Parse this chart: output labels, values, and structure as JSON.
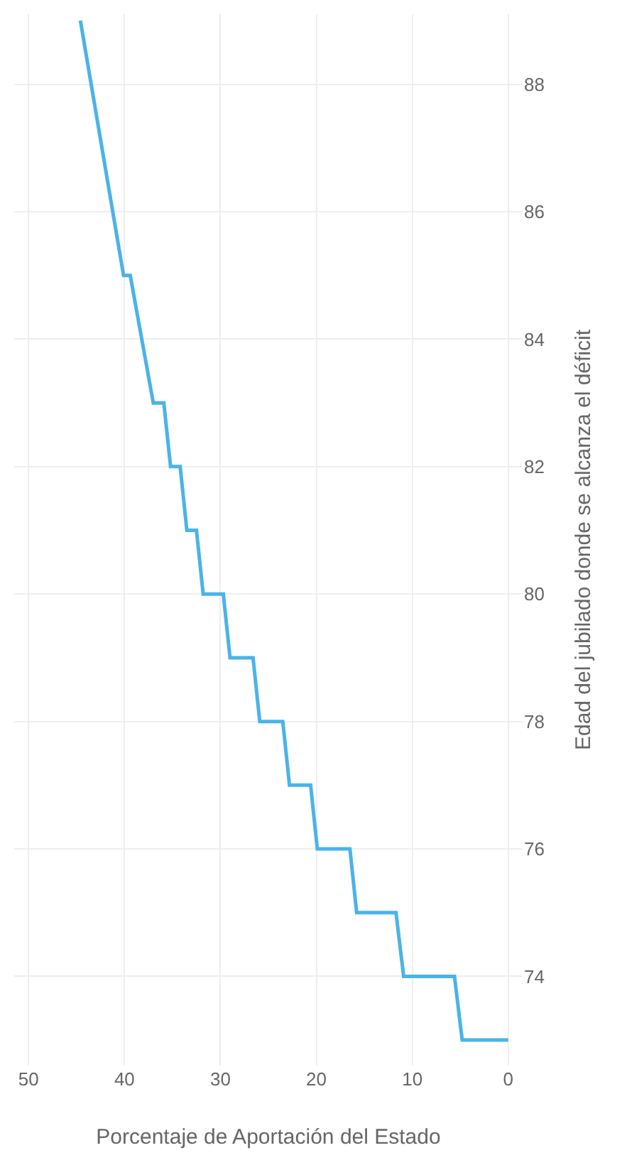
{
  "chart_data": {
    "type": "line",
    "xlabel": "Porcentaje de Aportación del Estado",
    "ylabel": "Edad del jubilado donde se alcanza el déficit",
    "x": [
      0,
      4.8,
      5.6,
      10.9,
      11.7,
      15.8,
      16.5,
      19.9,
      20.6,
      22.8,
      23.5,
      25.9,
      26.6,
      29,
      29.7,
      31.8,
      32.5,
      33.5,
      34.2,
      35.2,
      35.9,
      37,
      39.4,
      40.1,
      44.6
    ],
    "series": [
      {
        "color": "#4ab3e8",
        "values": [
          73,
          73,
          74,
          74,
          75,
          75,
          76,
          76,
          77,
          77,
          78,
          78,
          79,
          79,
          80,
          80,
          81,
          81,
          82,
          82,
          83,
          83,
          85,
          85,
          89
        ]
      }
    ],
    "xlim": [
      51.5,
      -1.5
    ],
    "xticks": [
      0,
      10,
      20,
      30,
      40,
      50
    ],
    "ylim": [
      72.6,
      89.1
    ],
    "yticks": [
      74,
      76,
      78,
      80,
      82,
      84,
      86,
      88
    ],
    "grid": true,
    "marker": "none",
    "line_style": "solid"
  }
}
